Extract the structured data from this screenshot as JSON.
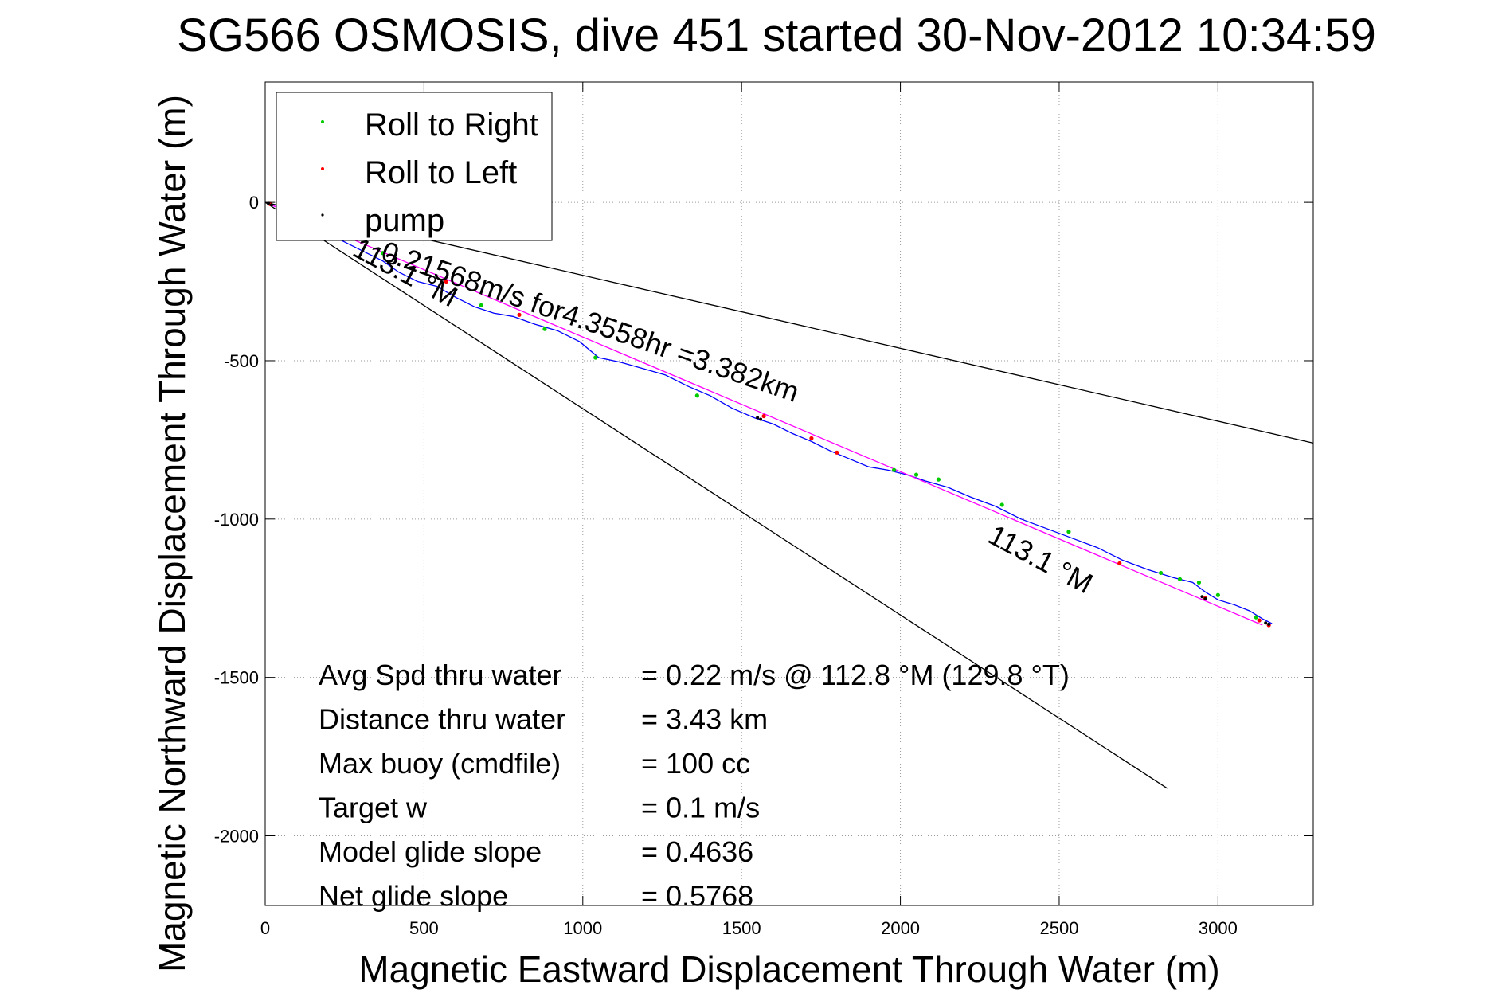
{
  "chart_data": {
    "type": "line",
    "title": "SG566 OSMOSIS, dive 451 started 30-Nov-2012 10:34:59",
    "xlabel": "Magnetic Eastward Displacement Through Water (m)",
    "ylabel": "Magnetic Northward Displacement Through Water (m)",
    "xlim": [
      0,
      3300
    ],
    "ylim": [
      -2220,
      380
    ],
    "xticks": [
      0,
      500,
      1000,
      1500,
      2000,
      2500,
      3000
    ],
    "yticks": [
      0,
      -500,
      -1000,
      -1500,
      -2000
    ],
    "xtick_labels": [
      "0",
      "500",
      "1000",
      "1500",
      "2000",
      "2500",
      "3000"
    ],
    "ytick_labels": [
      "0",
      "-500",
      "-1000",
      "-1500",
      "-2000"
    ],
    "grid": true,
    "legend_position": "top-left",
    "legend": [
      {
        "label": "Roll to Right",
        "color": "#00cc00"
      },
      {
        "label": "Roll to Left",
        "color": "#ff0000"
      },
      {
        "label": "pump",
        "color": "#000000"
      }
    ],
    "series": [
      {
        "color": "#0000ff",
        "style": "line",
        "x": [
          0,
          60,
          130,
          220,
          300,
          370,
          420,
          480,
          540,
          600,
          660,
          720,
          780,
          850,
          920,
          990,
          1050,
          1120,
          1190,
          1260,
          1330,
          1400,
          1470,
          1540,
          1600,
          1660,
          1720,
          1780,
          1840,
          1900,
          1960,
          2020,
          2080,
          2150,
          2220,
          2300,
          2380,
          2460,
          2540,
          2620,
          2700,
          2780,
          2860,
          2920,
          2960,
          3000,
          3050,
          3100,
          3140,
          3170
        ],
        "y": [
          0,
          -25,
          -60,
          -110,
          -150,
          -185,
          -220,
          -250,
          -265,
          -300,
          -330,
          -350,
          -360,
          -385,
          -405,
          -440,
          -490,
          -505,
          -525,
          -545,
          -580,
          -610,
          -650,
          -680,
          -700,
          -730,
          -755,
          -785,
          -810,
          -835,
          -845,
          -860,
          -880,
          -900,
          -930,
          -960,
          -1000,
          -1030,
          -1060,
          -1090,
          -1130,
          -1160,
          -1185,
          -1200,
          -1230,
          -1255,
          -1270,
          -1290,
          -1315,
          -1330
        ]
      },
      {
        "color": "#ff00ff",
        "style": "line",
        "x": [
          0,
          3140
        ],
        "y": [
          0,
          -1335
        ]
      },
      {
        "color": "#000000",
        "style": "line",
        "x": [
          0,
          3300
        ],
        "y": [
          0,
          -760
        ]
      },
      {
        "color": "#000000",
        "style": "line",
        "x": [
          0,
          2840
        ],
        "y": [
          0,
          -1850
        ]
      },
      {
        "name": "Roll to Right",
        "color": "#00cc00",
        "style": "points",
        "x": [
          370,
          680,
          880,
          1040,
          1360,
          1980,
          2050,
          2120,
          2320,
          2530,
          2820,
          2880,
          2940,
          3000,
          3120
        ],
        "y": [
          -160,
          -325,
          -400,
          -490,
          -610,
          -845,
          -860,
          -875,
          -955,
          -1040,
          -1170,
          -1190,
          -1200,
          -1240,
          -1310
        ]
      },
      {
        "name": "Roll to Left",
        "color": "#ff0000",
        "style": "points",
        "x": [
          15,
          570,
          800,
          1570,
          1720,
          1800,
          2690,
          2960,
          3130,
          3160
        ],
        "y": [
          -5,
          -250,
          -355,
          -675,
          -745,
          -790,
          -1140,
          -1250,
          -1320,
          -1335
        ]
      },
      {
        "name": "pump",
        "color": "#000000",
        "style": "points",
        "x": [
          10,
          20,
          1550,
          1560,
          2950,
          2960,
          3150,
          3160
        ],
        "y": [
          -3,
          -8,
          -680,
          -685,
          -1245,
          -1252,
          -1328,
          -1332
        ]
      }
    ],
    "annotations": [
      {
        "text": "0.21568m/s for4.3558hr =3.382km",
        "x": 360,
        "y": -180,
        "angle": 19
      },
      {
        "text": "113.1 °M",
        "x": 270,
        "y": -165,
        "angle": 28
      },
      {
        "text": "113.1 °M",
        "x": 2270,
        "y": -1070,
        "angle": 28
      }
    ],
    "stats": [
      {
        "label": "Avg Spd thru water",
        "value": "=  0.22 m/s @ 112.8 °M (129.8 °T)"
      },
      {
        "label": "Distance thru water",
        "value": "=  3.43 km"
      },
      {
        "label": "Max buoy (cmdfile)",
        "value": "= 100 cc"
      },
      {
        "label": "Target w",
        "value": "= 0.1 m/s"
      },
      {
        "label": "Model glide slope",
        "value": "= 0.4636"
      },
      {
        "label": "Net glide slope",
        "value": "= 0.5768"
      }
    ]
  }
}
